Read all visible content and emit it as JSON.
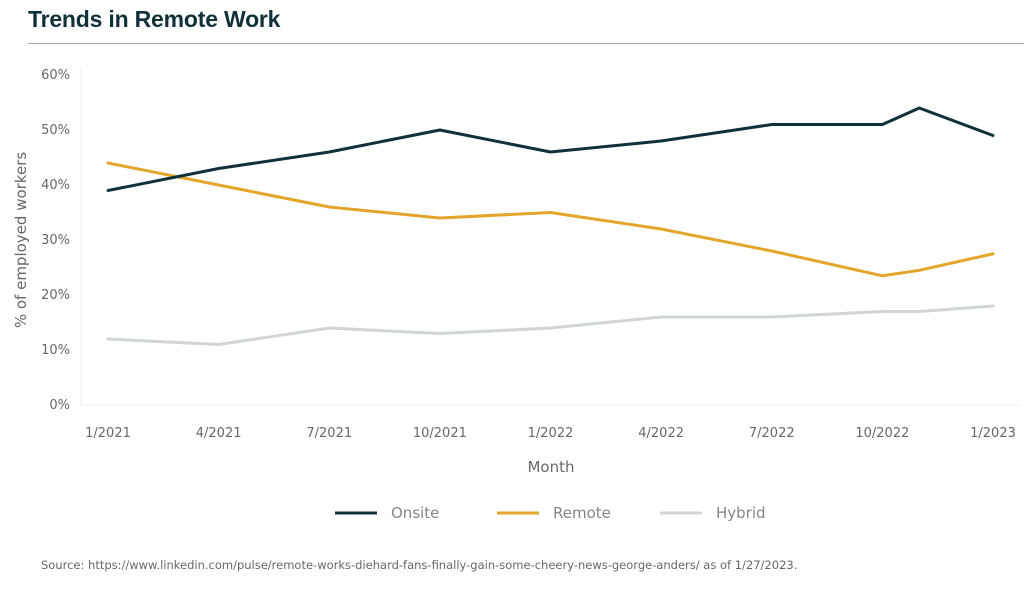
{
  "title": "Trends in Remote Work",
  "source": "Source: https://www.linkedin.com/pulse/remote-works-diehard-fans-finally-gain-some-cheery-news-george-anders/ as of 1/27/2023.",
  "chart_data": {
    "type": "line",
    "xlabel": "Month",
    "ylabel": "% of employed workers",
    "x_tick_labels": [
      "1/2021",
      "4/2021",
      "7/2021",
      "10/2021",
      "1/2022",
      "4/2022",
      "7/2022",
      "10/2022",
      "1/2023"
    ],
    "y_tick_labels": [
      "0%",
      "10%",
      "20%",
      "30%",
      "40%",
      "50%",
      "60%"
    ],
    "ylim": [
      0,
      60
    ],
    "grid": false,
    "legend_position": "bottom",
    "x": [
      0,
      3,
      6,
      9,
      12,
      15,
      18,
      21,
      22,
      24
    ],
    "series": [
      {
        "name": "Onsite",
        "color": "#10303a",
        "values": [
          39,
          43,
          46,
          50,
          46,
          48,
          51,
          51,
          54,
          49
        ]
      },
      {
        "name": "Remote",
        "color": "#e3a52a",
        "values": [
          44,
          40,
          36,
          34,
          35,
          32,
          28,
          23.5,
          24.5,
          27.5
        ]
      },
      {
        "name": "Hybrid",
        "color": "#d0d5d8",
        "values": [
          12,
          11,
          14,
          13,
          14,
          16,
          16,
          17,
          17,
          18
        ]
      }
    ]
  }
}
